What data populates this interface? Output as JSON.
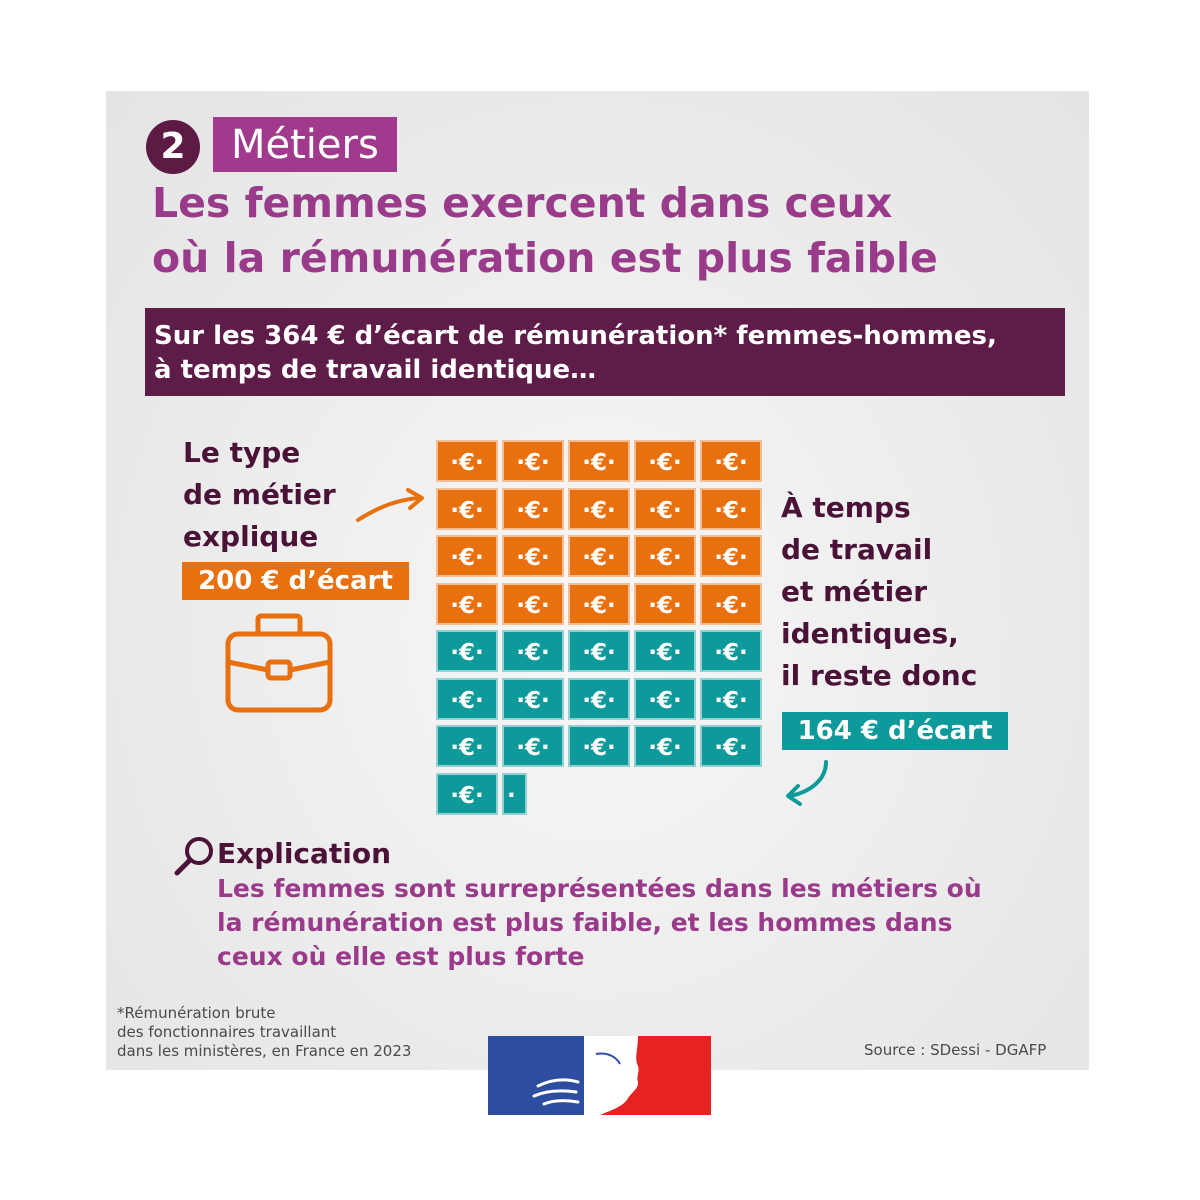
{
  "colors": {
    "dark_purple": "#5e1c48",
    "magenta": "#a13a8d",
    "title_purple": "#9a3a8a",
    "orange": "#e8700f",
    "teal": "#0e9a9a",
    "flag_blue": "#2c4da0",
    "flag_red": "#e62222"
  },
  "header": {
    "number": "2",
    "section": "Métiers",
    "title_line1": "Les femmes exercent dans ceux",
    "title_line2": "où la rémunération est plus faible"
  },
  "banner": {
    "line1": "Sur les 364 € d’écart de rémunération* femmes-hommes,",
    "line2": "à temps de travail identique…"
  },
  "left": {
    "lines": [
      "Le type",
      "de métier",
      "explique"
    ],
    "badge": "200 € d’écart",
    "icon": "briefcase-icon"
  },
  "right": {
    "lines": [
      "À temps",
      "de travail",
      "et métier",
      "identiques,",
      "il reste donc"
    ],
    "badge": "164 € d’écart"
  },
  "grid": {
    "tile_label": "·€·",
    "columns": 5,
    "orange_tiles": 20,
    "teal_tiles": 16,
    "teal_partial_fraction": 0.4
  },
  "explanation": {
    "icon": "magnifier-icon",
    "heading": "Explication",
    "body_lines": [
      "Les femmes sont surreprésentées dans les métiers où",
      "la rémunération est plus faible, et les hommes dans",
      "ceux où elle est plus forte"
    ]
  },
  "footer": {
    "footnote_lines": [
      "*Rémunération brute",
      "des fonctionnaires travaillant",
      "dans les ministères, en France en 2023"
    ],
    "source": "Source : SDessi - DGAFP",
    "logo": "marianne-flag-logo"
  }
}
